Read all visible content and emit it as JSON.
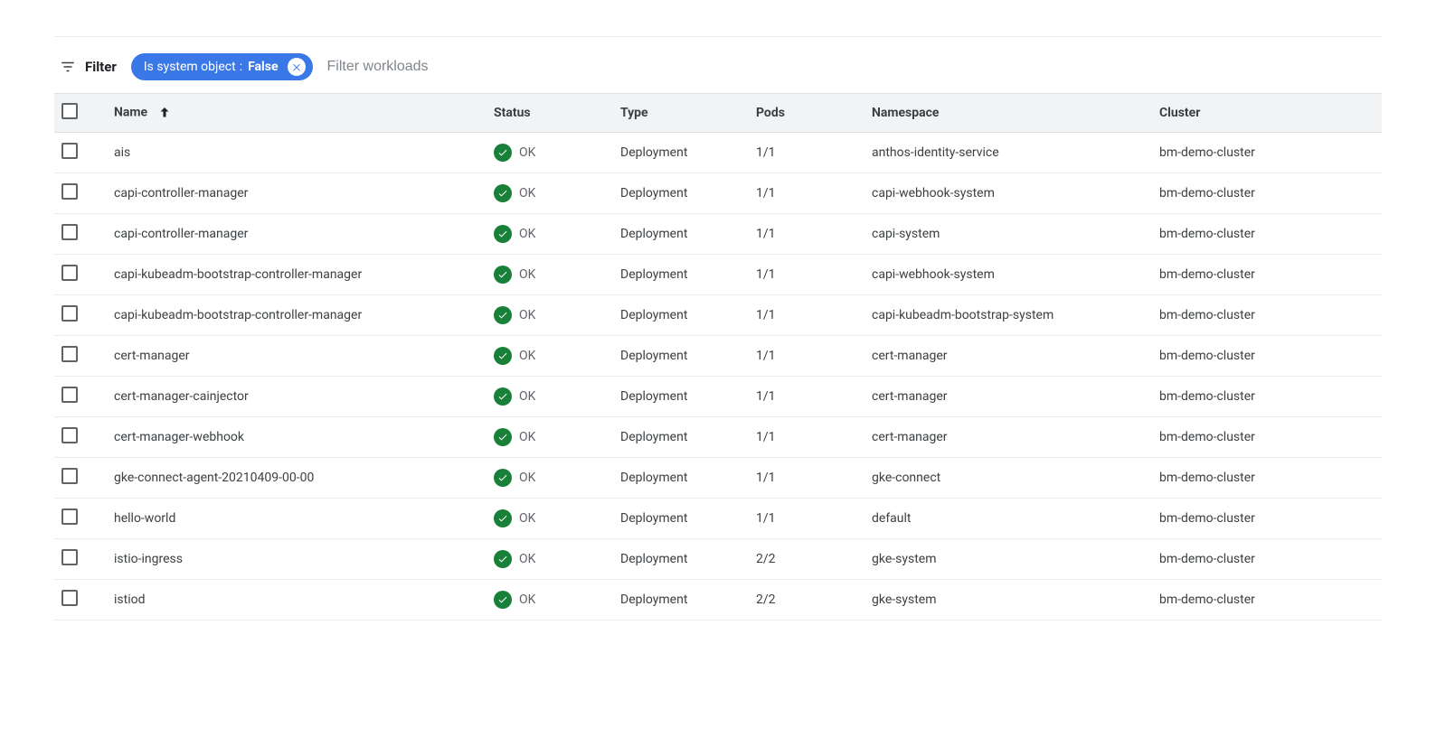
{
  "filter": {
    "label": "Filter",
    "chip": {
      "key": "Is system object",
      "value": "False"
    },
    "placeholder": "Filter workloads"
  },
  "columns": {
    "name": "Name",
    "status": "Status",
    "type": "Type",
    "pods": "Pods",
    "namespace": "Namespace",
    "cluster": "Cluster"
  },
  "status_ok_label": "OK",
  "status_ok_color": "#188038",
  "chip_color": "#3b78e7",
  "rows": [
    {
      "name": "ais",
      "status": "OK",
      "type": "Deployment",
      "pods": "1/1",
      "namespace": "anthos-identity-service",
      "cluster": "bm-demo-cluster"
    },
    {
      "name": "capi-controller-manager",
      "status": "OK",
      "type": "Deployment",
      "pods": "1/1",
      "namespace": "capi-webhook-system",
      "cluster": "bm-demo-cluster"
    },
    {
      "name": "capi-controller-manager",
      "status": "OK",
      "type": "Deployment",
      "pods": "1/1",
      "namespace": "capi-system",
      "cluster": "bm-demo-cluster"
    },
    {
      "name": "capi-kubeadm-bootstrap-controller-manager",
      "status": "OK",
      "type": "Deployment",
      "pods": "1/1",
      "namespace": "capi-webhook-system",
      "cluster": "bm-demo-cluster"
    },
    {
      "name": "capi-kubeadm-bootstrap-controller-manager",
      "status": "OK",
      "type": "Deployment",
      "pods": "1/1",
      "namespace": "capi-kubeadm-bootstrap-system",
      "cluster": "bm-demo-cluster"
    },
    {
      "name": "cert-manager",
      "status": "OK",
      "type": "Deployment",
      "pods": "1/1",
      "namespace": "cert-manager",
      "cluster": "bm-demo-cluster"
    },
    {
      "name": "cert-manager-cainjector",
      "status": "OK",
      "type": "Deployment",
      "pods": "1/1",
      "namespace": "cert-manager",
      "cluster": "bm-demo-cluster"
    },
    {
      "name": "cert-manager-webhook",
      "status": "OK",
      "type": "Deployment",
      "pods": "1/1",
      "namespace": "cert-manager",
      "cluster": "bm-demo-cluster"
    },
    {
      "name": "gke-connect-agent-20210409-00-00",
      "status": "OK",
      "type": "Deployment",
      "pods": "1/1",
      "namespace": "gke-connect",
      "cluster": "bm-demo-cluster"
    },
    {
      "name": "hello-world",
      "status": "OK",
      "type": "Deployment",
      "pods": "1/1",
      "namespace": "default",
      "cluster": "bm-demo-cluster"
    },
    {
      "name": "istio-ingress",
      "status": "OK",
      "type": "Deployment",
      "pods": "2/2",
      "namespace": "gke-system",
      "cluster": "bm-demo-cluster"
    },
    {
      "name": "istiod",
      "status": "OK",
      "type": "Deployment",
      "pods": "2/2",
      "namespace": "gke-system",
      "cluster": "bm-demo-cluster"
    }
  ]
}
